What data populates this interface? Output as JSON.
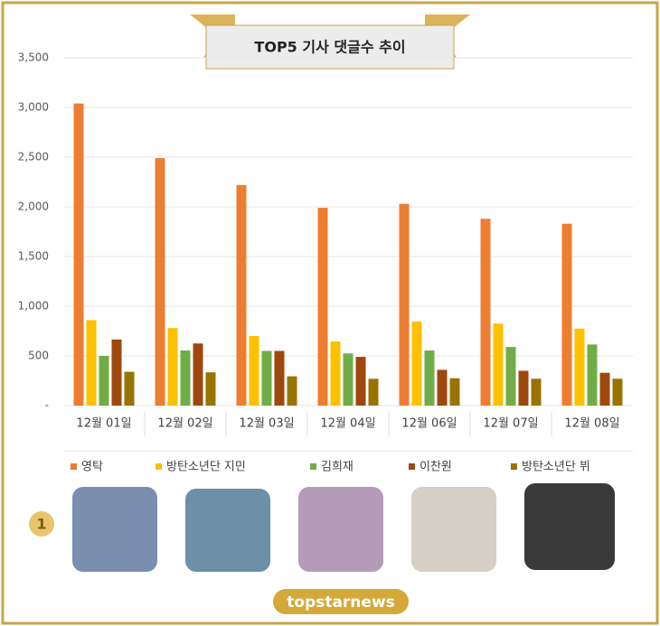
{
  "chart_data": {
    "type": "bar",
    "title": "TOP5 기사 댓글수 추이",
    "categories": [
      "12월 01일",
      "12월 02일",
      "12월 03일",
      "12월 04일",
      "12월 06일",
      "12월 07일",
      "12월 08일"
    ],
    "series": [
      {
        "name": "영탁",
        "color": "#ed7d31",
        "values": [
          3040,
          2490,
          2220,
          1990,
          2030,
          1880,
          1830
        ]
      },
      {
        "name": "방탄소년단 지민",
        "color": "#ffc000",
        "values": [
          860,
          780,
          700,
          645,
          845,
          825,
          775
        ]
      },
      {
        "name": "김희재",
        "color": "#70ad47",
        "values": [
          500,
          555,
          550,
          525,
          555,
          590,
          615
        ]
      },
      {
        "name": "이찬원",
        "color": "#9e480e",
        "values": [
          665,
          625,
          550,
          490,
          360,
          350,
          330
        ]
      },
      {
        "name": "방탄소년단 뷔",
        "color": "#997300",
        "values": [
          340,
          335,
          295,
          270,
          275,
          270,
          270
        ]
      }
    ],
    "ylim": [
      0,
      3500
    ],
    "yticks": [
      {
        "value": 0,
        "label": "-"
      },
      500,
      {
        "value": 1000,
        "label": "1,000"
      },
      {
        "value": 1500,
        "label": "1,500"
      },
      {
        "value": 2000,
        "label": "2,000"
      },
      {
        "value": 2500,
        "label": "2,500"
      },
      {
        "value": 3000,
        "label": "3,000"
      },
      {
        "value": 3500,
        "label": "3,500"
      }
    ],
    "grid": true,
    "legend": "bottom",
    "rank": "1",
    "logo": "topstarnews"
  }
}
